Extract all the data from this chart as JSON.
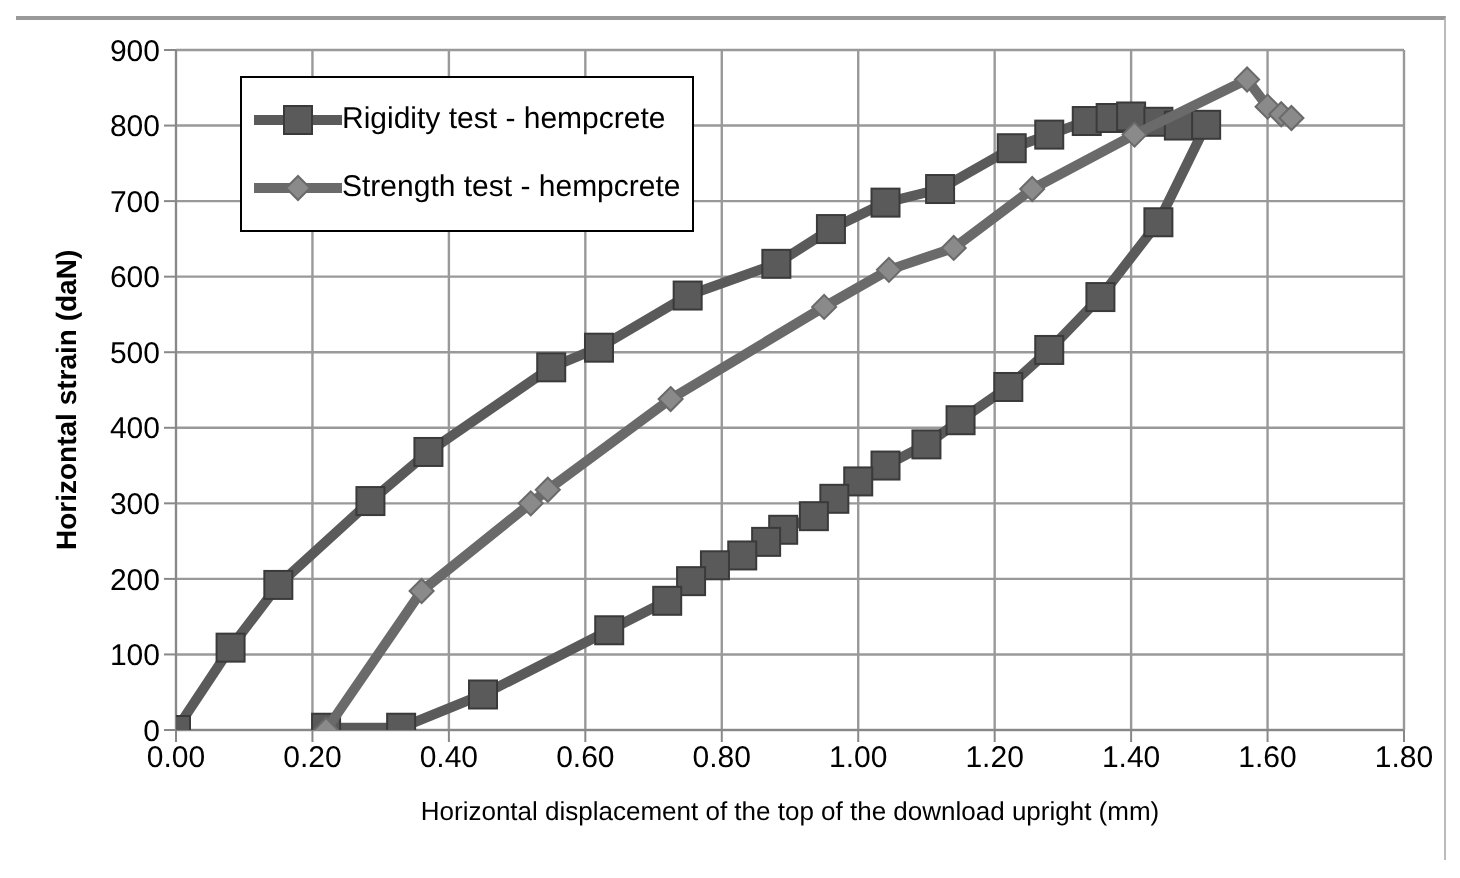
{
  "chart_data": {
    "type": "line",
    "xlabel": "Horizontal displacement of the top of the download upright (mm)",
    "ylabel": "Horizontal strain (daN)",
    "xlim": [
      0,
      1.8
    ],
    "xticks": [
      {
        "value": 0,
        "label": "0.00"
      },
      {
        "value": 0.2,
        "label": "0.20"
      },
      {
        "value": 0.4,
        "label": "0.40"
      },
      {
        "value": 0.6,
        "label": "0.60"
      },
      {
        "value": 0.8,
        "label": "0.80"
      },
      {
        "value": 1,
        "label": "1.00"
      },
      {
        "value": 1.2,
        "label": "1.20"
      },
      {
        "value": 1.4,
        "label": "1.40"
      },
      {
        "value": 1.6,
        "label": "1.60"
      },
      {
        "value": 1.8,
        "label": "1.80"
      }
    ],
    "ylim": [
      0,
      900
    ],
    "yticks": [
      0,
      100,
      200,
      300,
      400,
      500,
      600,
      700,
      800,
      900
    ],
    "grid": true,
    "legend": "top left",
    "line_style": "solid",
    "series": [
      {
        "name": "Rigidity test - hempcrete",
        "color": "#5a5a5a",
        "marker": "square",
        "x": [
          0,
          0.08,
          0.15,
          0.285,
          0.37,
          0.55,
          0.62,
          0.75,
          0.88,
          0.96,
          1.04,
          1.12,
          1.225,
          1.28,
          1.335,
          1.37,
          1.4,
          1.44,
          1.47,
          1.51,
          1.44,
          1.355,
          1.28,
          1.22,
          1.15,
          1.1,
          1.04,
          1,
          0.965,
          0.935,
          0.89,
          0.865,
          0.83,
          0.79,
          0.755,
          0.72,
          0.635,
          0.45,
          0.33,
          0.22
        ],
        "values": [
          0,
          109,
          192,
          303,
          368,
          480,
          506,
          575,
          617,
          663,
          698,
          716,
          770,
          788,
          806,
          810,
          812,
          805,
          800,
          801,
          672,
          573,
          503,
          454,
          410,
          378,
          350,
          329,
          306,
          283,
          265,
          249,
          231,
          218,
          197,
          171,
          132,
          47,
          3,
          3
        ]
      },
      {
        "name": "Strength test - hempcrete",
        "color": "#6a6a6a",
        "marker": "diamond",
        "x": [
          0.22,
          0.36,
          0.52,
          0.545,
          0.725,
          0.95,
          1.045,
          1.14,
          1.255,
          1.405,
          1.57,
          1.6,
          1.62,
          1.635
        ],
        "values": [
          0,
          184,
          300,
          318,
          438,
          560,
          609,
          638,
          716,
          788,
          861,
          825,
          815,
          810
        ]
      }
    ]
  }
}
